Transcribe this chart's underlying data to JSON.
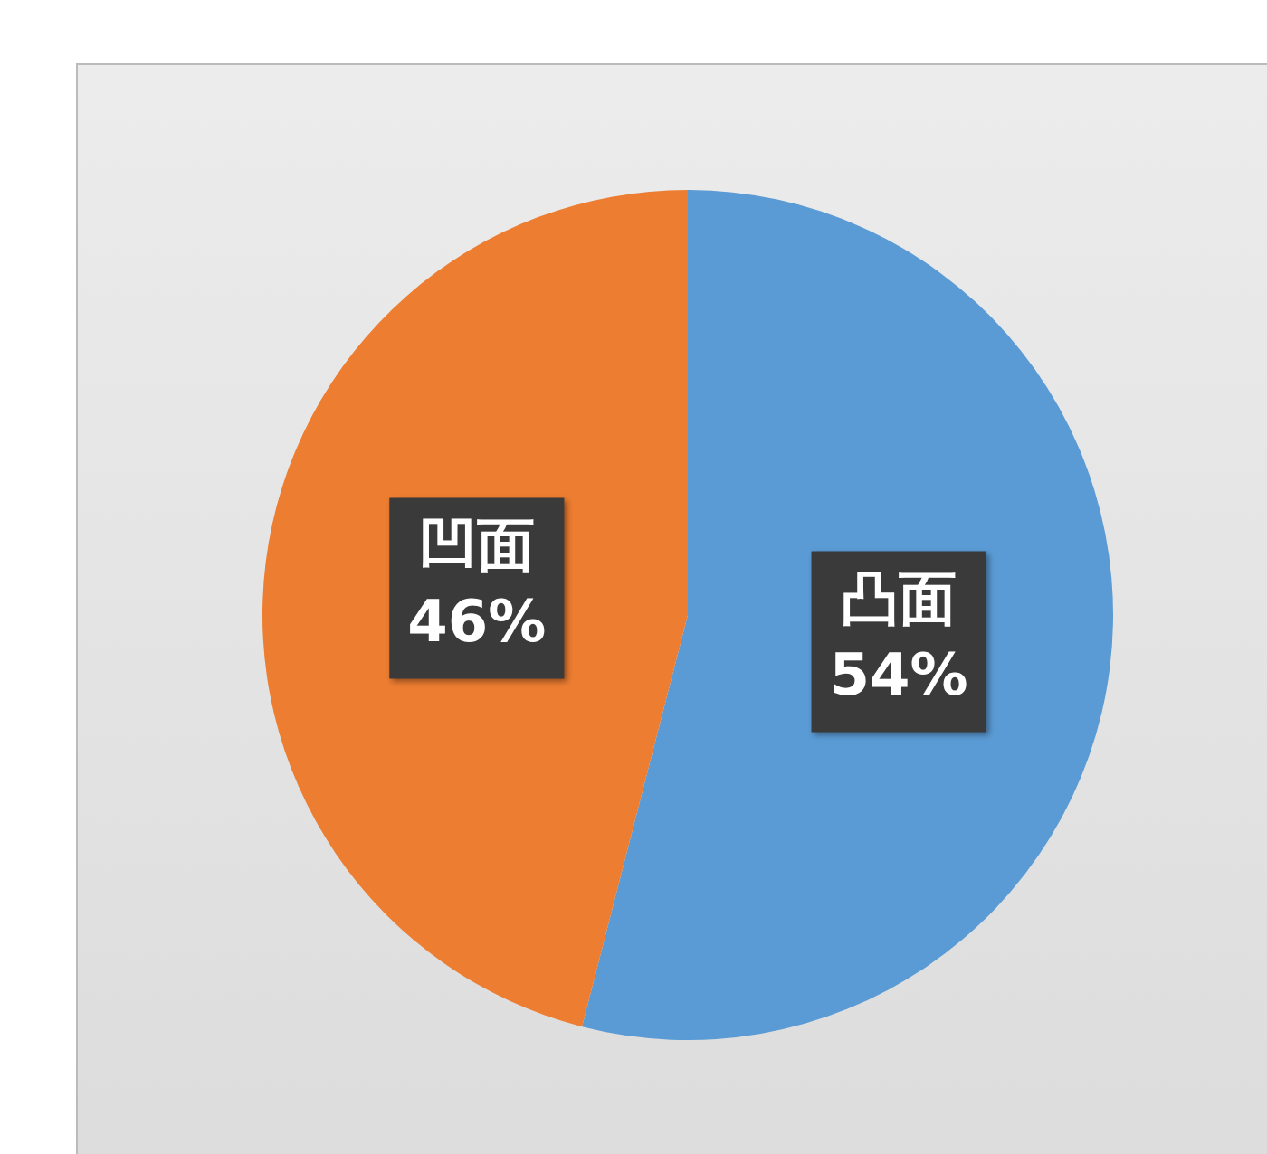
{
  "chart_data": {
    "type": "pie",
    "categories": [
      "凸面",
      "凹面"
    ],
    "values": [
      54,
      46
    ],
    "colors": [
      "#5b9bd5",
      "#ed7d31"
    ],
    "value_labels": [
      "54%",
      "46%"
    ],
    "legend": false
  }
}
